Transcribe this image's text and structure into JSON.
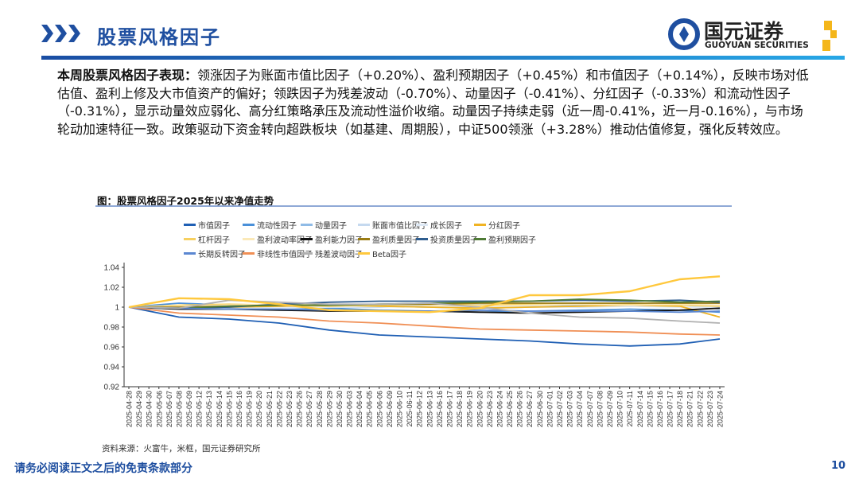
{
  "header": {
    "title": "股票风格因子",
    "logo_cn": "国元证券",
    "logo_en": "GUOYUAN SECURITIES",
    "accent": "#1f4fa0"
  },
  "summary": {
    "lead": "本周股票风格因子表现：",
    "body": "领涨因子为账面市值比因子（+0.20%）、盈利预期因子（+0.45%）和市值因子（+0.14%），反映市场对低估值、盈利上修及大市值资产的偏好；领跌因子为残差波动（-0.70%）、动量因子（-0.41%）、分红因子（-0.33%）和流动性因子（-0.31%），显示动量效应弱化、高分红策略承压及流动性溢价收缩。动量因子持续走弱（近一周-0.41%，近一月-0.16%），与市场轮动加速特征一致。政策驱动下资金转向超跌板块（如基建、周期股），中证500领涨（+3.28%）推动估值修复，强化反转效应。"
  },
  "chart_data": {
    "type": "line",
    "title": "图：股票风格因子2025年以来净值走势",
    "xlabel": "",
    "ylabel": "",
    "ylim": [
      0.92,
      1.04
    ],
    "yticks": [
      0.92,
      0.94,
      0.96,
      0.98,
      1,
      1.02,
      1.04
    ],
    "ytick_labels": [
      "0.92",
      "0.94",
      "0.96",
      "0.98",
      "1",
      "1.02",
      "1.04"
    ],
    "legend_position": "top",
    "grid": false,
    "x_dates": [
      "2025-04-28",
      "2025-04-29",
      "2025-04-30",
      "2025-05-06",
      "2025-05-07",
      "2025-05-08",
      "2025-05-09",
      "2025-05-12",
      "2025-05-13",
      "2025-05-14",
      "2025-05-15",
      "2025-05-16",
      "2025-05-19",
      "2025-05-20",
      "2025-05-21",
      "2025-05-22",
      "2025-05-23",
      "2025-05-26",
      "2025-05-27",
      "2025-05-28",
      "2025-05-29",
      "2025-05-30",
      "2025-06-03",
      "2025-06-04",
      "2025-06-05",
      "2025-06-06",
      "2025-06-09",
      "2025-06-10",
      "2025-06-11",
      "2025-06-12",
      "2025-06-13",
      "2025-06-16",
      "2025-06-17",
      "2025-06-18",
      "2025-06-19",
      "2025-06-20",
      "2025-06-23",
      "2025-06-24",
      "2025-06-25",
      "2025-06-26",
      "2025-06-27",
      "2025-06-30",
      "2025-07-01",
      "2025-07-02",
      "2025-07-03",
      "2025-07-04",
      "2025-07-07",
      "2025-07-08",
      "2025-07-09",
      "2025-07-10",
      "2025-07-11",
      "2025-07-14",
      "2025-07-15",
      "2025-07-16",
      "2025-07-17",
      "2025-07-18",
      "2025-07-21",
      "2025-07-22",
      "2025-07-23",
      "2025-07-24"
    ],
    "value_dates": [
      "2025-04-28",
      "2025-05-08",
      "2025-05-15",
      "2025-05-22",
      "2025-05-29",
      "2025-06-06",
      "2025-06-13",
      "2025-06-20",
      "2025-06-27",
      "2025-07-04",
      "2025-07-11",
      "2025-07-18",
      "2025-07-24"
    ],
    "series": [
      {
        "name": "市值因子",
        "color": "#1f5fb4",
        "values": [
          1,
          0.99,
          0.988,
          0.984,
          0.977,
          0.972,
          0.97,
          0.968,
          0.966,
          0.963,
          0.961,
          0.963,
          0.968
        ]
      },
      {
        "name": "流动性因子",
        "color": "#4a90d9",
        "values": [
          1,
          1.004,
          1.002,
          0.998,
          0.999,
          0.997,
          0.996,
          0.995,
          0.996,
          0.997,
          0.998,
          0.997,
          0.995
        ]
      },
      {
        "name": "动量因子",
        "color": "#8fbbe6",
        "values": [
          1,
          1.001,
          1.0,
          1.001,
          1.002,
          1.001,
          1.0,
          0.999,
          1.0,
          1.002,
          1.001,
          1.003,
          0.998
        ]
      },
      {
        "name": "账面市值比因子",
        "color": "#c5d9ef",
        "values": [
          1,
          0.998,
          0.999,
          1.001,
          1.0,
          1.0,
          1.002,
          1.003,
          1.001,
          1.0,
          1.002,
          1.003,
          1.002
        ]
      },
      {
        "name": "成长因子",
        "color": "#dde8f4",
        "values": [
          1,
          1.001,
          1.0,
          0.999,
          1.0,
          1.001,
          1.0,
          1.001,
          1.0,
          1.0,
          1.001,
          1.0,
          1.0
        ]
      },
      {
        "name": "分红因子",
        "color": "#f0b323",
        "values": [
          1,
          0.999,
          1.0,
          1.001,
          1.002,
          1.001,
          1.0,
          0.999,
          1.0,
          1.001,
          1.002,
          1.001,
          0.99
        ]
      },
      {
        "name": "杠杆因子",
        "color": "#f7d060",
        "values": [
          1,
          1.002,
          1.003,
          1.002,
          1.001,
          1.002,
          1.003,
          1.002,
          1.003,
          1.004,
          1.003,
          1.002,
          1.001
        ]
      },
      {
        "name": "盈利波动率因子",
        "color": "#fbe9b8",
        "values": [
          1,
          1.001,
          1.002,
          1.003,
          1.002,
          1.003,
          1.002,
          1.001,
          1.002,
          1.003,
          1.002,
          1.003,
          1.002
        ]
      },
      {
        "name": "盈利能力因子",
        "color": "#111111",
        "values": [
          1,
          0.998,
          0.998,
          0.997,
          0.996,
          0.996,
          0.996,
          0.995,
          0.994,
          0.995,
          0.996,
          0.997,
          0.999
        ]
      },
      {
        "name": "盈利质量因子",
        "color": "#9a7b12",
        "values": [
          1,
          1.0,
          1.001,
          1.002,
          1.002,
          1.003,
          1.003,
          1.004,
          1.004,
          1.004,
          1.004,
          1.004,
          1.004
        ]
      },
      {
        "name": "投资质量因子",
        "color": "#2f5d8f",
        "values": [
          1,
          0.999,
          1.0,
          1.003,
          1.005,
          1.006,
          1.006,
          1.006,
          1.006,
          1.007,
          1.006,
          1.007,
          1.005
        ]
      },
      {
        "name": "盈利预期因子",
        "color": "#4e7a35",
        "values": [
          1,
          0.999,
          1.001,
          1.002,
          1.002,
          1.003,
          1.004,
          1.005,
          1.006,
          1.008,
          1.007,
          1.005,
          1.006
        ]
      },
      {
        "name": "长期反转因子",
        "color": "#5b87d1",
        "values": [
          1,
          0.999,
          0.998,
          0.998,
          0.997,
          0.996,
          0.996,
          0.997,
          0.996,
          0.996,
          0.996,
          0.995,
          0.996
        ]
      },
      {
        "name": "非线性市值因子",
        "color": "#f08f55",
        "values": [
          1,
          0.994,
          0.992,
          0.99,
          0.986,
          0.984,
          0.981,
          0.978,
          0.977,
          0.976,
          0.975,
          0.973,
          0.972
        ]
      },
      {
        "name": "残差波动因子",
        "color": "#b0b0b0",
        "values": [
          1,
          0.999,
          1.007,
          1.005,
          1.003,
          1.003,
          1.004,
          1.0,
          0.994,
          0.99,
          0.989,
          0.986,
          0.984
        ]
      },
      {
        "name": "Beta因子",
        "color": "#ffc83d",
        "values": [
          1,
          1.009,
          1.008,
          1.003,
          0.997,
          0.996,
          0.995,
          0.999,
          1.012,
          1.012,
          1.016,
          1.028,
          1.031
        ]
      }
    ]
  },
  "source": "资料来源：火富牛，米框，国元证券研究所",
  "footer": {
    "disclaimer": "请务必阅读正文之后的免责条款部分",
    "page": "10"
  }
}
